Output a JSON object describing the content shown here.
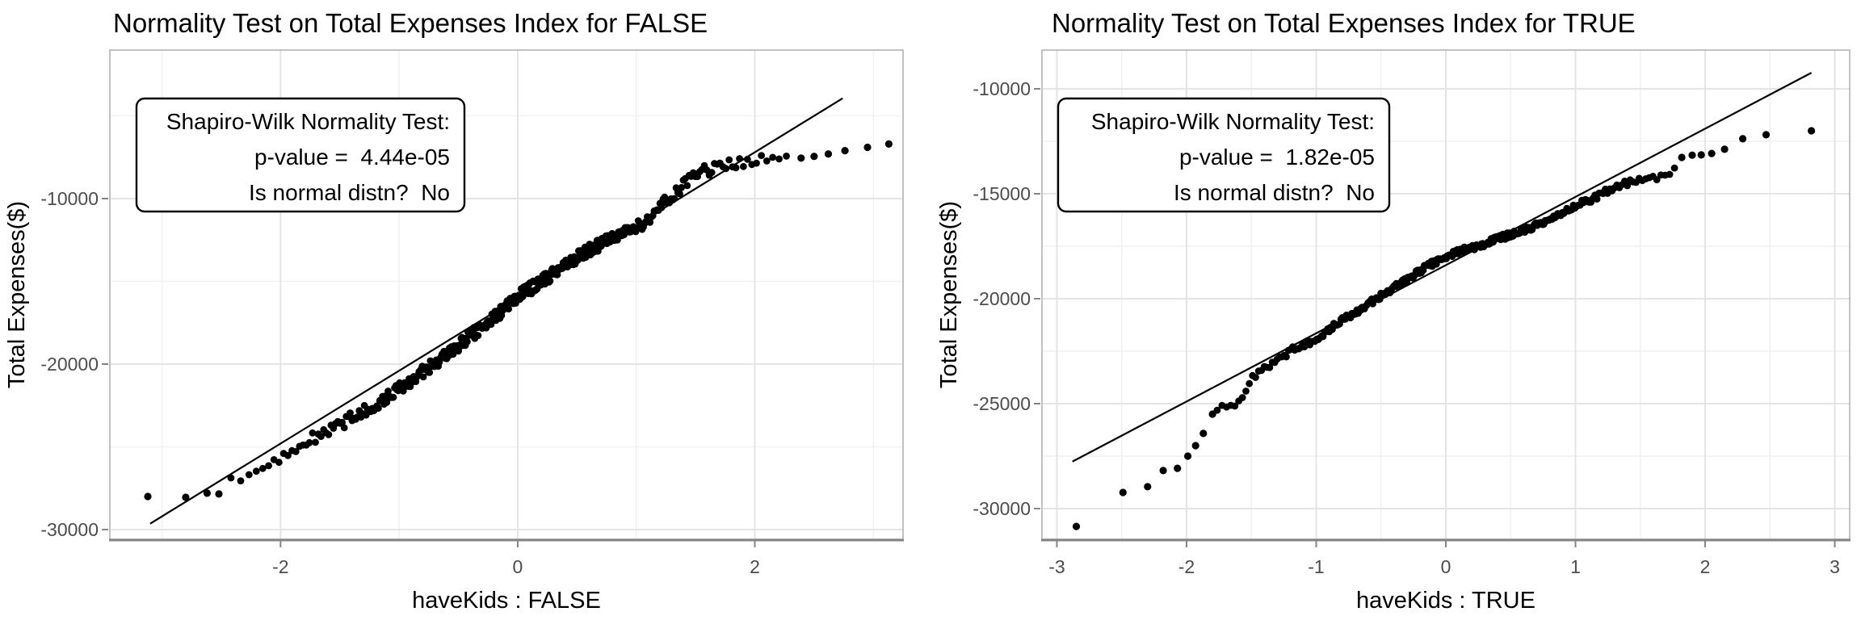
{
  "page": {
    "background": "#ffffff",
    "description": "Two ggplot-style Q-Q normality test plots side by side"
  },
  "style": {
    "point_color": "#000000",
    "qq_line_color": "#000000",
    "grid_major_color": "#e4e4e4",
    "grid_minor_color": "#f1f1f1",
    "panel_border_color": "#b3b3b3",
    "axis_line_color": "#858585",
    "tick_mark_color": "#858585",
    "tick_label_color": "#4d4d4d",
    "text_color": "#000000",
    "annotation_box_fill": "#ffffff",
    "annotation_box_border": "#000000"
  },
  "chart_data": [
    {
      "type": "scatter",
      "variant": "qq-normality-plot",
      "title": "Normality Test on Total Expenses Index for FALSE",
      "xlabel": "haveKids : FALSE",
      "ylabel": "Total Expenses($)",
      "annotation": {
        "line1": "Shapiro-Wilk Normality Test:",
        "line2": "p-value =  4.44e-05",
        "line3": "Is normal distn?  No",
        "p_value": "4.44e-05",
        "is_normal_distribution": "No"
      },
      "x_axis": {
        "major_ticks": [
          -2,
          0,
          2
        ],
        "tick_labels": [
          "-2",
          "0",
          "2"
        ],
        "minor_ticks": [
          -3,
          -1,
          1,
          3
        ],
        "range": [
          -3.44,
          3.25
        ]
      },
      "y_axis": {
        "major_ticks": [
          -10000,
          -20000,
          -30000
        ],
        "tick_labels": [
          "-10000",
          "-20000",
          "-30000"
        ],
        "minor_ticks": [
          -5000,
          -15000,
          -25000
        ],
        "range": [
          -30585,
          -1024
        ]
      },
      "grid": true,
      "legend": "none",
      "qq_line": {
        "slope": 4400,
        "intercept": -16000,
        "x_start": -3.1,
        "x_end": 2.74
      },
      "points_isolated": [
        [
          -3.12,
          -28000
        ],
        [
          -2.8,
          -28050
        ],
        [
          -2.62,
          -27800
        ],
        [
          -2.52,
          -27850
        ],
        [
          2.39,
          -7550
        ],
        [
          2.5,
          -7450
        ],
        [
          2.62,
          -7300
        ],
        [
          2.76,
          -7100
        ],
        [
          2.95,
          -6900
        ],
        [
          3.13,
          -6700
        ]
      ],
      "band": {
        "comment": "dense overlapping dot band read off the plot; anchors are [z-quantile, value]",
        "anchors": [
          [
            -2.43,
            -26880
          ],
          [
            -2.36,
            -26830
          ],
          [
            -2.29,
            -26900
          ],
          [
            -2.23,
            -26490
          ],
          [
            -2.16,
            -26390
          ],
          [
            -2.1,
            -25950
          ],
          [
            -2.03,
            -25800
          ],
          [
            -1.93,
            -25320
          ],
          [
            -1.84,
            -24930
          ],
          [
            -1.75,
            -24590
          ],
          [
            -1.65,
            -24200
          ],
          [
            -1.56,
            -23850
          ],
          [
            -1.45,
            -23460
          ],
          [
            -1.34,
            -22980
          ],
          [
            -1.22,
            -22490
          ],
          [
            -1.1,
            -22000
          ],
          [
            -0.99,
            -21410
          ],
          [
            -0.88,
            -20850
          ],
          [
            -0.77,
            -20300
          ],
          [
            -0.66,
            -19750
          ],
          [
            -0.55,
            -19150
          ],
          [
            -0.45,
            -18600
          ],
          [
            -0.35,
            -18050
          ],
          [
            -0.25,
            -17450
          ],
          [
            -0.15,
            -16900
          ],
          [
            -0.05,
            -16150
          ],
          [
            0.05,
            -15700
          ],
          [
            0.15,
            -15250
          ],
          [
            0.25,
            -14750
          ],
          [
            0.35,
            -14250
          ],
          [
            0.45,
            -13800
          ],
          [
            0.55,
            -13350
          ],
          [
            0.65,
            -12950
          ],
          [
            0.75,
            -12550
          ],
          [
            0.85,
            -12200
          ],
          [
            0.95,
            -11900
          ],
          [
            1.05,
            -11500
          ],
          [
            1.15,
            -10900
          ],
          [
            1.25,
            -10200
          ],
          [
            1.35,
            -9500
          ],
          [
            1.45,
            -8850
          ],
          [
            1.55,
            -8400
          ],
          [
            1.65,
            -8150
          ],
          [
            1.78,
            -7950
          ],
          [
            1.95,
            -7800
          ],
          [
            2.1,
            -7700
          ],
          [
            2.32,
            -7600
          ]
        ],
        "n_samples": 400,
        "qnorm_scale": 1.06,
        "x_range": [
          -2.47,
          2.32
        ],
        "jitter": 370
      }
    },
    {
      "type": "scatter",
      "variant": "qq-normality-plot",
      "title": "Normality Test on Total Expenses Index for TRUE",
      "xlabel": "haveKids : TRUE",
      "ylabel": "Total Expenses($)",
      "annotation": {
        "line1": "Shapiro-Wilk Normality Test:",
        "line2": "p-value =  1.82e-05",
        "line3": "Is normal distn?  No",
        "p_value": "1.82e-05",
        "is_normal_distribution": "No"
      },
      "x_axis": {
        "major_ticks": [
          -3,
          -2,
          -1,
          0,
          1,
          2,
          3
        ],
        "tick_labels": [
          "-3",
          "-2",
          "-1",
          "0",
          "1",
          "2",
          "3"
        ],
        "minor_ticks": [
          -2.5,
          -1.5,
          -0.5,
          0.5,
          1.5,
          2.5
        ],
        "range": [
          -3.115,
          3.115
        ]
      },
      "y_axis": {
        "major_ticks": [
          -10000,
          -15000,
          -20000,
          -25000,
          -30000
        ],
        "tick_labels": [
          "-10000",
          "-15000",
          "-20000",
          "-25000",
          "-30000"
        ],
        "minor_ticks": [
          -12500,
          -17500,
          -22500,
          -27500
        ],
        "range": [
          -31462,
          -8154
        ]
      },
      "grid": true,
      "legend": "none",
      "qq_line": {
        "slope": 3250,
        "intercept": -18400,
        "x_start": -2.88,
        "x_end": 2.82
      },
      "points_isolated": [
        [
          -2.85,
          -30850
        ],
        [
          -2.49,
          -29230
        ],
        [
          -2.3,
          -28960
        ],
        [
          -2.18,
          -28190
        ],
        [
          -2.07,
          -28080
        ],
        [
          -1.99,
          -27500
        ],
        [
          -1.93,
          -27000
        ],
        [
          -1.87,
          -26420
        ],
        [
          -1.8,
          -25500
        ],
        [
          1.82,
          -13270
        ],
        [
          1.9,
          -13160
        ],
        [
          1.97,
          -13150
        ],
        [
          2.05,
          -13080
        ],
        [
          2.15,
          -12880
        ],
        [
          2.29,
          -12380
        ],
        [
          2.47,
          -12190
        ],
        [
          2.82,
          -12000
        ]
      ],
      "band": {
        "comment": "dense overlapping dot band read off the plot; anchors are [z-quantile, value]",
        "anchors": [
          [
            -1.79,
            -25300
          ],
          [
            -1.72,
            -25120
          ],
          [
            -1.63,
            -25050
          ],
          [
            -1.57,
            -24700
          ],
          [
            -1.51,
            -23920
          ],
          [
            -1.43,
            -23390
          ],
          [
            -1.35,
            -23150
          ],
          [
            -1.26,
            -22770
          ],
          [
            -1.18,
            -22420
          ],
          [
            -1.04,
            -22040
          ],
          [
            -0.93,
            -21600
          ],
          [
            -0.82,
            -21100
          ],
          [
            -0.7,
            -20650
          ],
          [
            -0.56,
            -20100
          ],
          [
            -0.42,
            -19550
          ],
          [
            -0.28,
            -19000
          ],
          [
            -0.14,
            -18450
          ],
          [
            0.0,
            -18000
          ],
          [
            0.12,
            -17700
          ],
          [
            0.25,
            -17500
          ],
          [
            0.4,
            -17150
          ],
          [
            0.55,
            -16850
          ],
          [
            0.7,
            -16500
          ],
          [
            0.85,
            -16100
          ],
          [
            1.0,
            -15550
          ],
          [
            1.12,
            -15300
          ],
          [
            1.22,
            -14950
          ],
          [
            1.32,
            -14650
          ],
          [
            1.42,
            -14450
          ],
          [
            1.55,
            -14320
          ],
          [
            1.64,
            -14260
          ],
          [
            1.72,
            -14050
          ],
          [
            1.78,
            -13700
          ]
        ],
        "n_samples": 320,
        "qnorm_scale": 0.98,
        "x_range": [
          -1.8,
          1.79
        ],
        "jitter": 140
      }
    }
  ]
}
